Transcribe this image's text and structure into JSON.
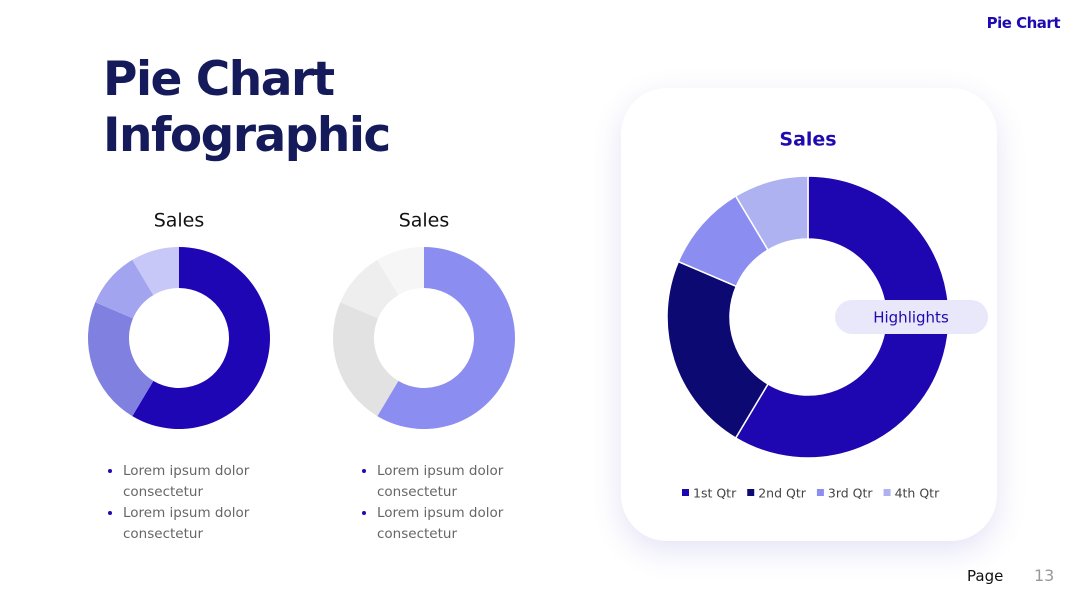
{
  "header": {
    "brand": "Pie Chart",
    "title_lines": [
      "Pie Chart",
      "Infographic"
    ]
  },
  "chart_data": [
    {
      "type": "donut",
      "title": "Sales",
      "values": [
        8.2,
        3.2,
        1.4,
        1.2
      ],
      "colors": [
        "#1f06b4",
        "#8080e0",
        "#a3a4f0",
        "#c8c8f8"
      ]
    },
    {
      "type": "donut",
      "title": "Sales",
      "values": [
        8.2,
        3.2,
        1.4,
        1.2
      ],
      "colors": [
        "#8b8ef0",
        "#e2e2e2",
        "#eeeeee",
        "#f6f6f6"
      ]
    },
    {
      "type": "donut",
      "title": "Sales",
      "categories": [
        "1st Qtr",
        "2nd Qtr",
        "3rd Qtr",
        "4th Qtr"
      ],
      "values": [
        8.2,
        3.2,
        1.4,
        1.2
      ],
      "colors": [
        "#1e06b0",
        "#0c0a72",
        "#8b8ef0",
        "#aeb2f0"
      ],
      "annotation": "Highlights",
      "legend": "bottom"
    }
  ],
  "bullets": [
    [
      "Lorem ipsum dolor consectetur",
      "Lorem ipsum dolor consectetur"
    ],
    [
      "Lorem ipsum dolor consectetur",
      "Lorem ipsum dolor consectetur"
    ]
  ],
  "footer": {
    "label": "Page",
    "number": "13"
  }
}
